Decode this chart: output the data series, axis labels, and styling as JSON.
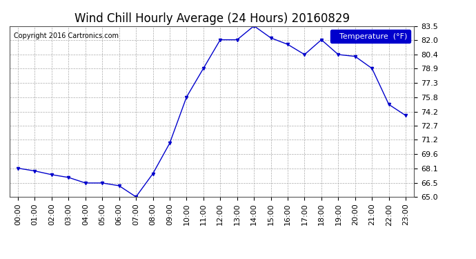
{
  "title": "Wind Chill Hourly Average (24 Hours) 20160829",
  "copyright": "Copyright 2016 Cartronics.com",
  "legend_label": "Temperature  (°F)",
  "hours": [
    "00:00",
    "01:00",
    "02:00",
    "03:00",
    "04:00",
    "05:00",
    "06:00",
    "07:00",
    "08:00",
    "09:00",
    "10:00",
    "11:00",
    "12:00",
    "13:00",
    "14:00",
    "15:00",
    "16:00",
    "17:00",
    "18:00",
    "19:00",
    "20:00",
    "21:00",
    "22:00",
    "23:00"
  ],
  "values": [
    68.1,
    67.8,
    67.4,
    67.1,
    66.5,
    66.5,
    66.2,
    65.0,
    67.5,
    70.8,
    75.8,
    78.9,
    82.0,
    82.0,
    83.5,
    82.2,
    81.5,
    80.4,
    82.0,
    80.4,
    80.2,
    78.9,
    75.0,
    73.8
  ],
  "ylim": [
    65.0,
    83.5
  ],
  "yticks": [
    65.0,
    66.5,
    68.1,
    69.6,
    71.2,
    72.7,
    74.2,
    75.8,
    77.3,
    78.9,
    80.4,
    82.0,
    83.5
  ],
  "line_color": "#0000cc",
  "marker": "v",
  "marker_size": 3,
  "bg_color": "#ffffff",
  "plot_bg_color": "#ffffff",
  "grid_color": "#aaaaaa",
  "title_fontsize": 12,
  "tick_fontsize": 8,
  "copyright_fontsize": 7,
  "legend_fontsize": 8
}
